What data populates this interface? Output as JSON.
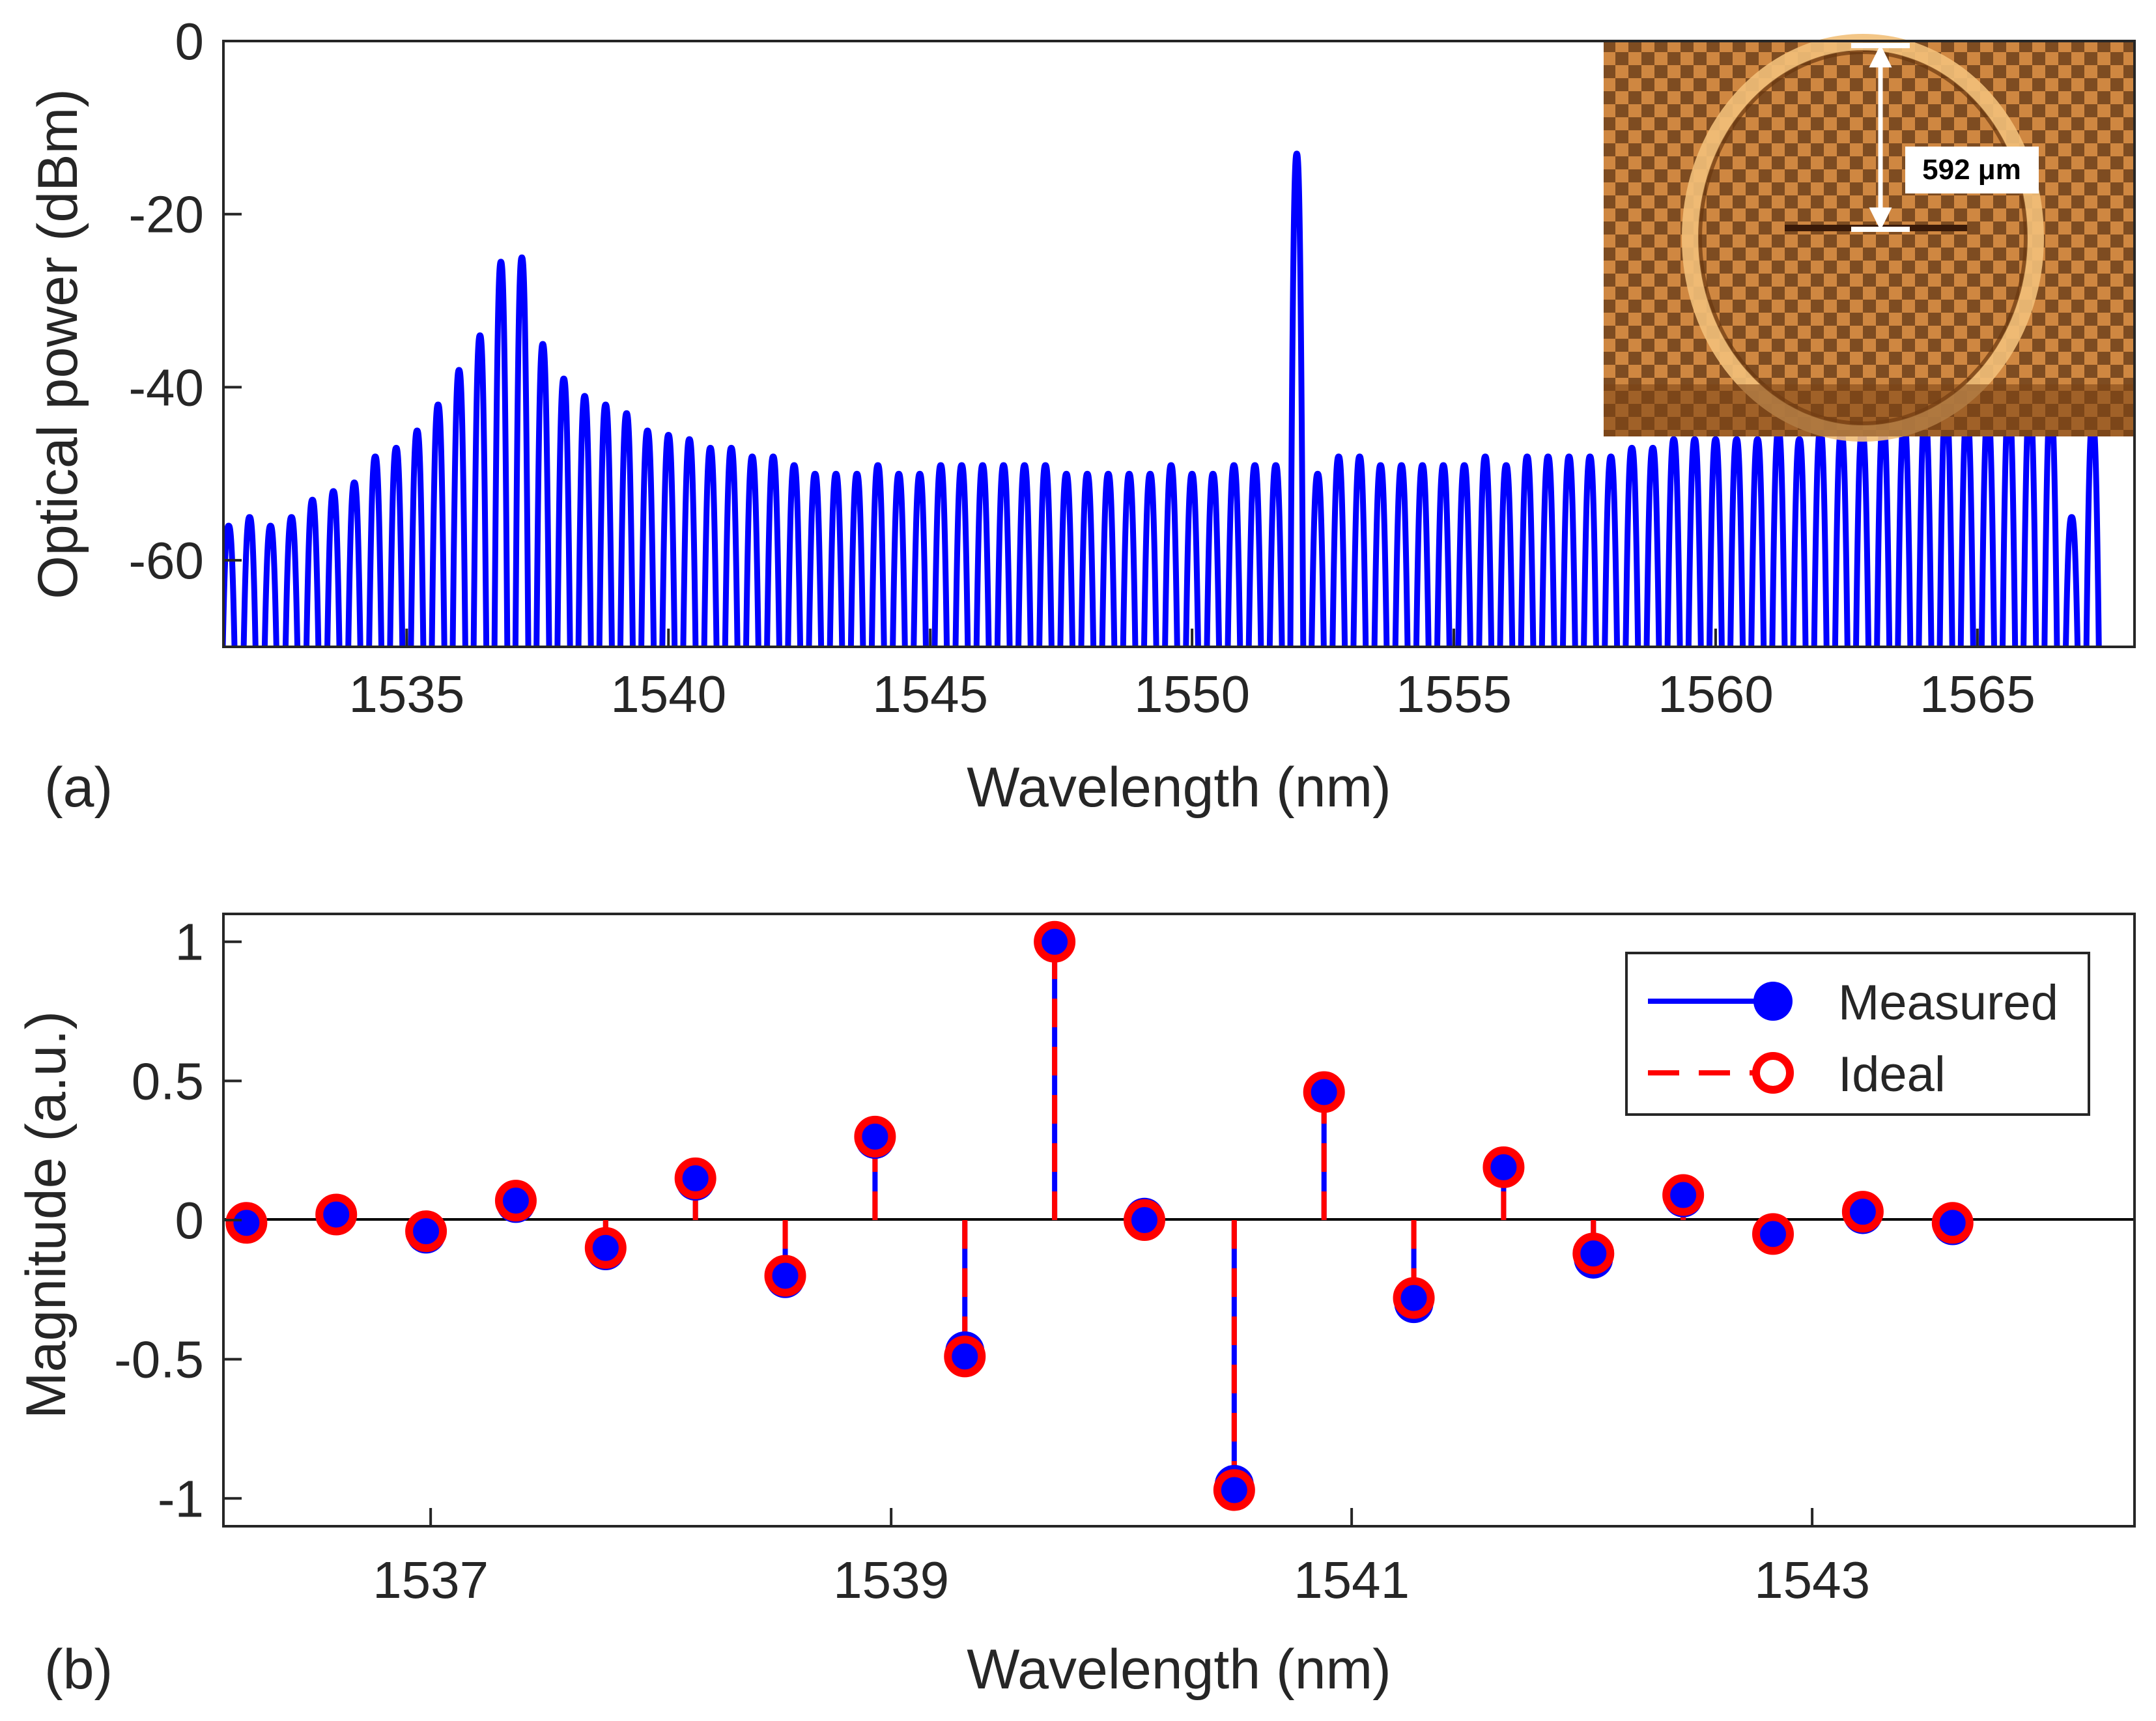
{
  "colors": {
    "measured": "#0000ff",
    "ideal": "#ff0000",
    "axis": "#262626"
  },
  "chart_data": [
    {
      "type": "line",
      "panel_label": "(a)",
      "title": "",
      "xlabel": "Wavelength (nm)",
      "ylabel": "Optical power (dBm)",
      "xlim": [
        1531.5,
        1568
      ],
      "ylim": [
        -70,
        0
      ],
      "xticks": [
        1535,
        1540,
        1545,
        1550,
        1555,
        1560,
        1565
      ],
      "yticks": [
        0,
        -20,
        -40,
        -60
      ],
      "grid": false,
      "comb": {
        "start": 1531.6,
        "spacing": 0.4,
        "count": 90,
        "floor": -70,
        "peaks": [
          -56,
          -55,
          -56,
          -55,
          -53,
          -52,
          -51,
          -48,
          -47,
          -45,
          -42,
          -38,
          -34,
          -25.5,
          -25,
          -35,
          -39,
          -41,
          -42,
          -43,
          -45,
          -45.5,
          -46,
          -47,
          -47,
          -48,
          -48,
          -49,
          -50,
          -50,
          -50,
          -49,
          -50,
          -50,
          -49,
          -49,
          -49,
          -49,
          -49,
          -49,
          -50,
          -50,
          -50,
          -50,
          -50,
          -49,
          -50,
          -50,
          -49,
          -49,
          -49,
          -13,
          -50,
          -48,
          -48,
          -49,
          -49,
          -49,
          -49,
          -49,
          -48,
          -49,
          -48,
          -48,
          -48,
          -48,
          -48,
          -47,
          -47,
          -46,
          -46,
          -46,
          -46,
          -46,
          -45,
          -46,
          -45,
          -45,
          -45,
          -44,
          -44,
          -43,
          -42,
          -43,
          -43,
          -42,
          -42,
          -42,
          -55,
          -44
        ]
      },
      "inset": {
        "annotation": "592 μm",
        "description": "microscope image of ring resonator"
      }
    },
    {
      "type": "stem",
      "panel_label": "(b)",
      "title": "",
      "xlabel": "Wavelength (nm)",
      "ylabel": "Magnitude (a.u.)",
      "xlim": [
        1536.1,
        1544.4
      ],
      "ylim": [
        -1.1,
        1.1
      ],
      "xticks": [
        1537,
        1539,
        1541,
        1543
      ],
      "yticks": [
        1,
        0.5,
        0,
        -0.5,
        -1
      ],
      "x": [
        1536.2,
        1536.59,
        1536.98,
        1537.37,
        1537.76,
        1538.15,
        1538.54,
        1538.93,
        1539.32,
        1539.71,
        1540.1,
        1540.49,
        1540.88,
        1541.27,
        1541.66,
        1542.05,
        1542.44,
        1542.83,
        1543.22,
        1543.61
      ],
      "series": [
        {
          "name": "Measured",
          "marker": "filled-circle",
          "line": "solid",
          "values": [
            -0.01,
            0.02,
            -0.05,
            0.06,
            -0.11,
            0.14,
            -0.21,
            0.29,
            -0.47,
            1.0,
            0.01,
            -0.95,
            0.46,
            -0.3,
            0.19,
            -0.14,
            0.08,
            -0.05,
            0.02,
            -0.02
          ]
        },
        {
          "name": "Ideal",
          "marker": "open-circle",
          "line": "dashed",
          "values": [
            -0.01,
            0.02,
            -0.04,
            0.07,
            -0.1,
            0.15,
            -0.2,
            0.3,
            -0.49,
            1.0,
            0.0,
            -0.97,
            0.46,
            -0.28,
            0.19,
            -0.12,
            0.09,
            -0.05,
            0.03,
            -0.01
          ]
        }
      ],
      "legend": {
        "position": "top-right",
        "entries": [
          "Measured",
          "Ideal"
        ]
      },
      "grid": false
    }
  ]
}
